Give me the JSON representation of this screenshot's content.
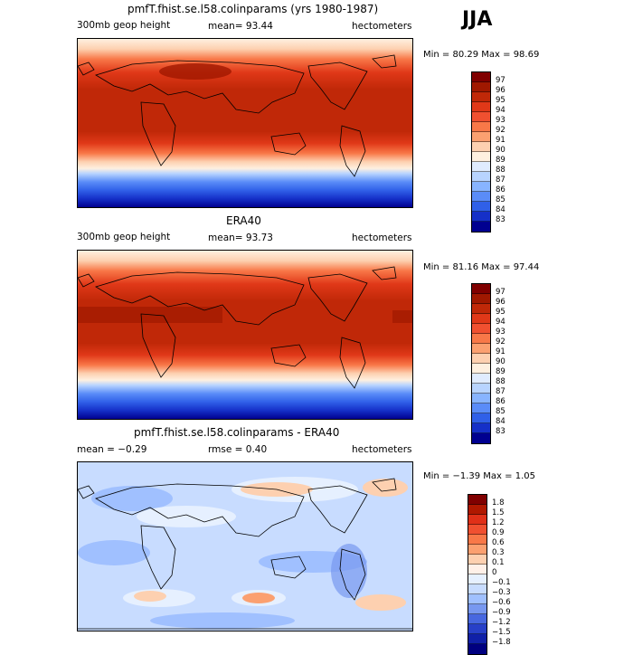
{
  "season": "JJA",
  "panels": [
    {
      "title": "pmfT.fhist.se.l58.colinparams (yrs 1980-1987)",
      "left_label": "300mb geop height",
      "mid_label": "mean=  93.44",
      "right_label": "hectometers",
      "minmax": "Min =  80.29 Max =  98.69",
      "colorbar": {
        "labels": [
          "97",
          "96",
          "95",
          "94",
          "93",
          "92",
          "91",
          "90",
          "89",
          "88",
          "87",
          "86",
          "85",
          "84",
          "83"
        ],
        "colors": [
          "#800000",
          "#a01800",
          "#c02808",
          "#e03818",
          "#f05030",
          "#f87848",
          "#fba070",
          "#fdd0b0",
          "#fef0e0",
          "#e0ecff",
          "#b8d4ff",
          "#88b4ff",
          "#5a8cf8",
          "#3060e8",
          "#1530c8",
          "#000090"
        ]
      }
    },
    {
      "title": "ERA40",
      "left_label": "300mb geop height",
      "mid_label": "mean=  93.73",
      "right_label": "hectometers",
      "minmax": "Min =  81.16 Max =  97.44",
      "colorbar": {
        "labels": [
          "97",
          "96",
          "95",
          "94",
          "93",
          "92",
          "91",
          "90",
          "89",
          "88",
          "87",
          "86",
          "85",
          "84",
          "83"
        ],
        "colors": [
          "#800000",
          "#a01800",
          "#c02808",
          "#e03818",
          "#f05030",
          "#f87848",
          "#fba070",
          "#fdd0b0",
          "#fef0e0",
          "#e0ecff",
          "#b8d4ff",
          "#88b4ff",
          "#5a8cf8",
          "#3060e8",
          "#1530c8",
          "#000090"
        ]
      }
    },
    {
      "title": "pmfT.fhist.se.l58.colinparams - ERA40",
      "left_label": "mean =  −0.29",
      "mid_label": "rmse =   0.40",
      "right_label": "hectometers",
      "minmax": "Min =  −1.39 Max =   1.05",
      "colorbar": {
        "labels": [
          "1.8",
          "1.5",
          "1.2",
          "0.9",
          "0.6",
          "0.3",
          "0.1",
          "0",
          "−0.1",
          "−0.3",
          "−0.6",
          "−0.9",
          "−1.2",
          "−1.5",
          "−1.8"
        ],
        "colors": [
          "#800000",
          "#b01800",
          "#e03018",
          "#f05030",
          "#f87848",
          "#fba070",
          "#fdd0b0",
          "#fff0e8",
          "#e6f0ff",
          "#c8dcff",
          "#a0c0ff",
          "#7898f0",
          "#4868e0",
          "#2840c8",
          "#1020a8",
          "#000080"
        ]
      }
    }
  ]
}
